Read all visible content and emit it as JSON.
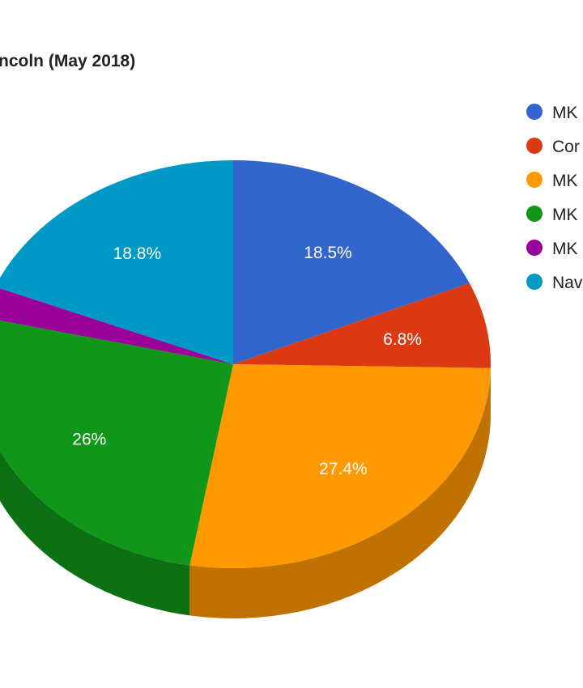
{
  "chart_data": {
    "type": "pie",
    "title": "ncoln (May 2018)",
    "labels": [
      "MK",
      "Cor",
      "MK",
      "MK",
      "MK",
      "Nav"
    ],
    "values": [
      18.5,
      6.8,
      27.4,
      26,
      2.5,
      18.8
    ],
    "data_labels": [
      "18.5%",
      "6.8%",
      "27.4%",
      "26%",
      "",
      "18.8%"
    ],
    "colors": [
      "#3366cc",
      "#dc3912",
      "#ff9900",
      "#109618",
      "#990099",
      "#0099c6"
    ],
    "side_colors": [
      "#264d99",
      "#a52b0e",
      "#bf7200",
      "#0c7112",
      "#730073",
      "#007394"
    ],
    "legend_position": "right",
    "style": "3d"
  }
}
